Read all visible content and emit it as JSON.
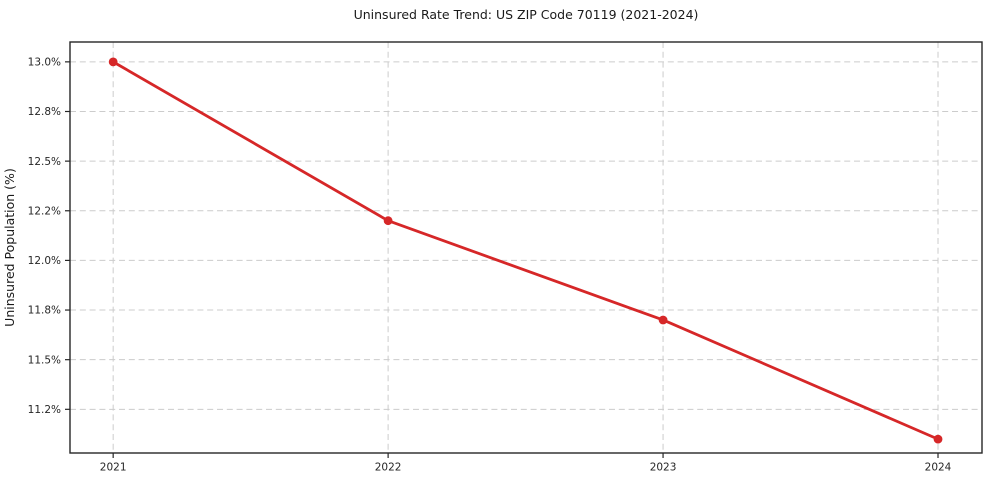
{
  "chart_data": {
    "type": "line",
    "title": "Uninsured Rate Trend: US ZIP Code 70119 (2021-2024)",
    "xlabel": "",
    "ylabel": "Uninsured Population (%)",
    "x": [
      2021,
      2022,
      2023,
      2024
    ],
    "x_tick_labels": [
      "2021",
      "2022",
      "2023",
      "2024"
    ],
    "series": [
      {
        "name": "Uninsured rate",
        "values": [
          13.0,
          12.2,
          11.7,
          11.1
        ]
      }
    ],
    "y_ticks": [
      {
        "value": 11.25,
        "label": "11.2%"
      },
      {
        "value": 11.5,
        "label": "11.5%"
      },
      {
        "value": 11.75,
        "label": "11.8%"
      },
      {
        "value": 12.0,
        "label": "12.0%"
      },
      {
        "value": 12.25,
        "label": "12.2%"
      },
      {
        "value": 12.5,
        "label": "12.5%"
      },
      {
        "value": 12.75,
        "label": "12.8%"
      },
      {
        "value": 13.0,
        "label": "13.0%"
      }
    ],
    "xlim": [
      2020.843,
      2024.16
    ],
    "ylim": [
      11.03,
      13.1
    ],
    "grid": true,
    "grid_style": "dashed",
    "grid_color": "#cccccc",
    "line_color": "#d62728",
    "marker": "circle",
    "marker_color": "#d62728",
    "background": "#ffffff",
    "legend": "none"
  }
}
